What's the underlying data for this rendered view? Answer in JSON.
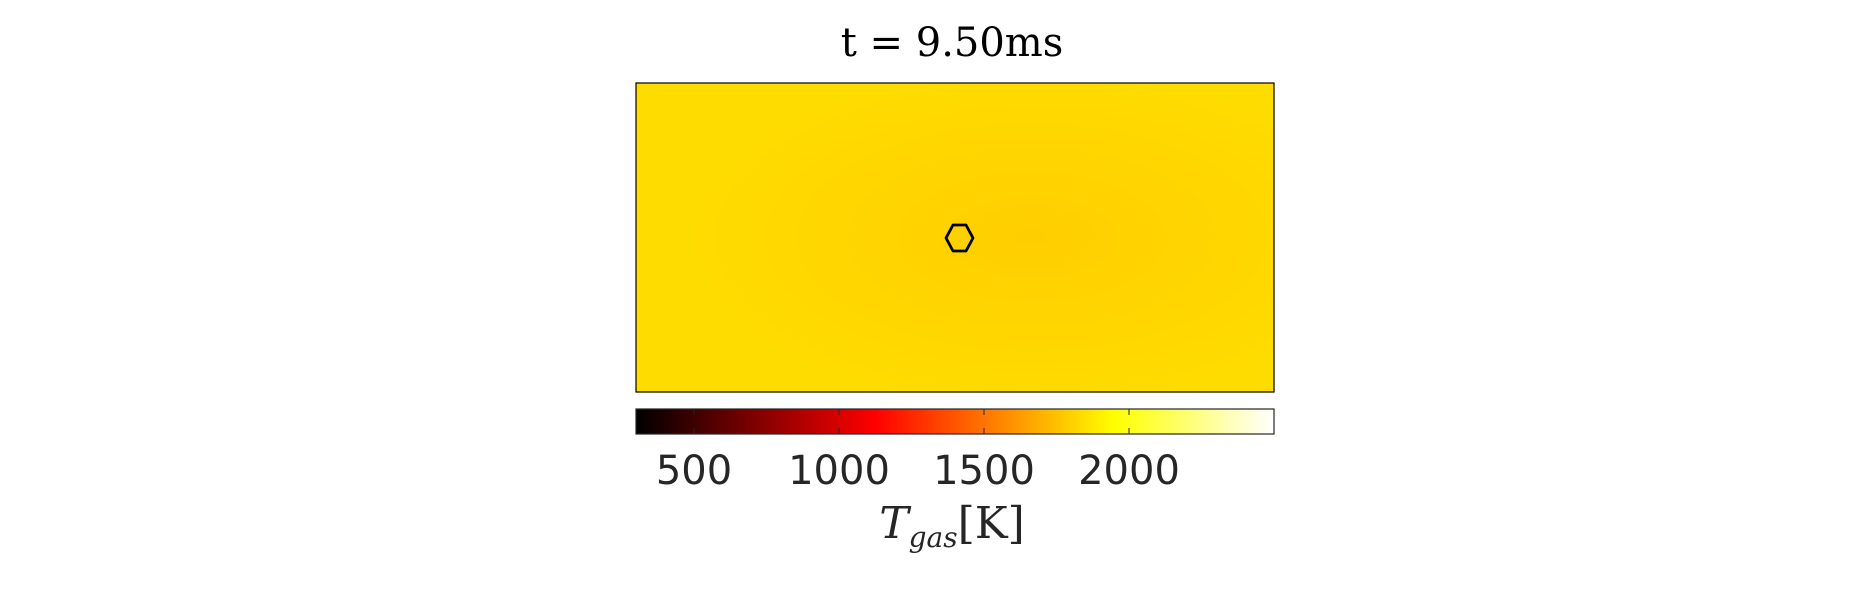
{
  "chart_data": {
    "type": "heatmap",
    "title": "t = 9.50ms",
    "field_description": "gas temperature field",
    "field_color_hex": "#FFDC00",
    "field_center_color_hex": "#FFCE00",
    "contour_color": "#000000",
    "colorbar": {
      "orientation": "horizontal",
      "colormap": "hot",
      "range": [
        300,
        2500
      ],
      "ticks": [
        500,
        1000,
        1500,
        2000
      ],
      "tick_labels": [
        "500",
        "1000",
        "1500",
        "2000"
      ],
      "label_main": "T",
      "label_sub": "gas",
      "label_unit": "[K]"
    },
    "grid": false
  }
}
